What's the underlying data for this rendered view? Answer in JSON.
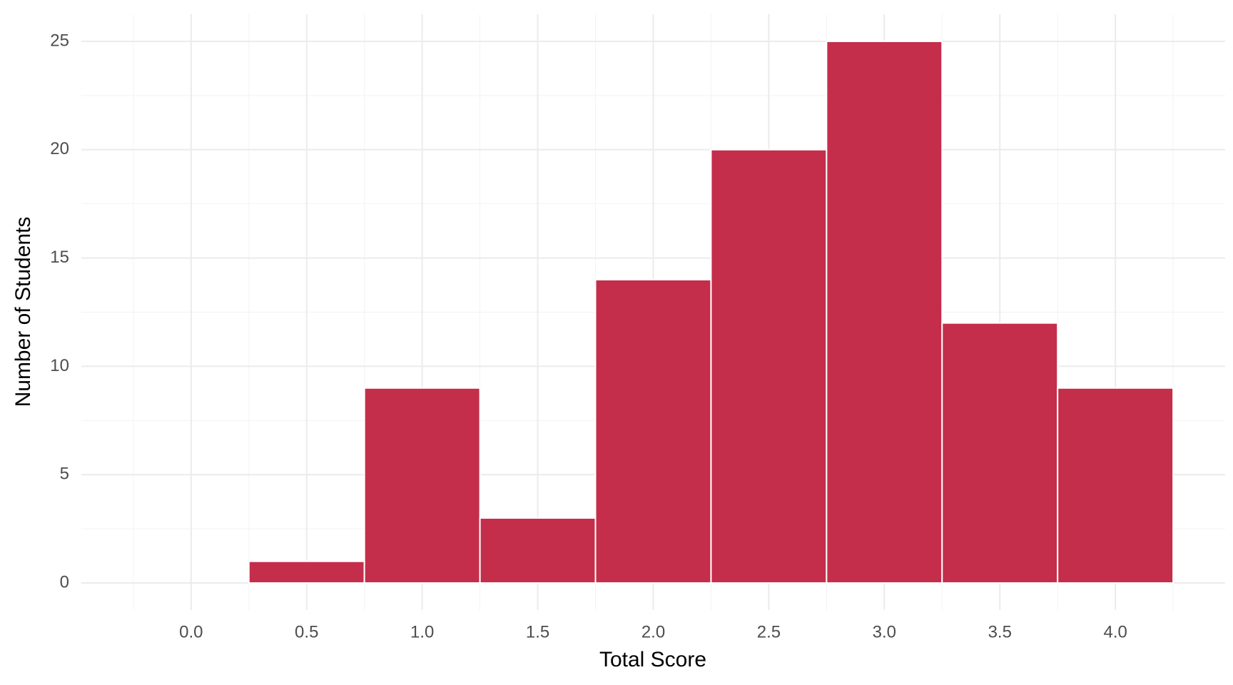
{
  "chart_data": {
    "type": "histogram",
    "x_label": "Total Score",
    "y_label": "Number of Students",
    "bins": [
      -0.25,
      0.25,
      0.75,
      1.25,
      1.75,
      2.25,
      2.75,
      3.25,
      3.75,
      4.25
    ],
    "values": [
      0,
      1,
      9,
      3,
      14,
      20,
      25,
      12,
      9
    ],
    "color": "#c42e4a",
    "xlim": [
      -0.475,
      4.475
    ],
    "xticks": [
      {
        "value": 0,
        "label": "0.0"
      },
      0.5,
      {
        "value": 1,
        "label": "1.0"
      },
      1.5,
      {
        "value": 2,
        "label": "2.0"
      },
      2.5,
      {
        "value": 3,
        "label": "3.0"
      },
      3.5,
      {
        "value": 4,
        "label": "4.0"
      }
    ],
    "ylim": [
      -1.25,
      26.25
    ],
    "yticks": [
      0,
      5,
      10,
      15,
      20,
      25
    ],
    "grid": true
  }
}
